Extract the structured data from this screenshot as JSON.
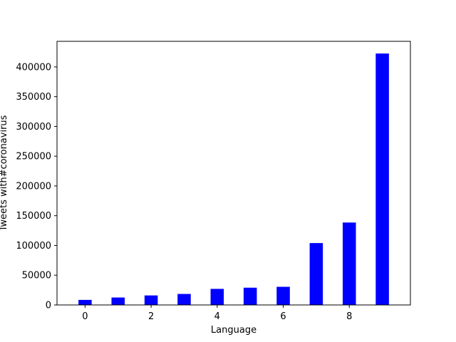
{
  "chart_data": {
    "type": "bar",
    "title": "",
    "xlabel": "Language",
    "ylabel": "Tweets with#coronavirus",
    "x": [
      0,
      1,
      2,
      3,
      4,
      5,
      6,
      7,
      8,
      9
    ],
    "values": [
      8500,
      12500,
      16000,
      18500,
      27000,
      29000,
      30500,
      104000,
      138500,
      422500
    ],
    "xlim": [
      -0.85,
      9.85
    ],
    "ylim": [
      0,
      443000
    ],
    "xticks": [
      0,
      2,
      4,
      6,
      8
    ],
    "yticks": [
      0,
      50000,
      100000,
      150000,
      200000,
      250000,
      300000,
      350000,
      400000
    ],
    "bar_color": "#0000ff",
    "grid": false,
    "legend": "none"
  }
}
